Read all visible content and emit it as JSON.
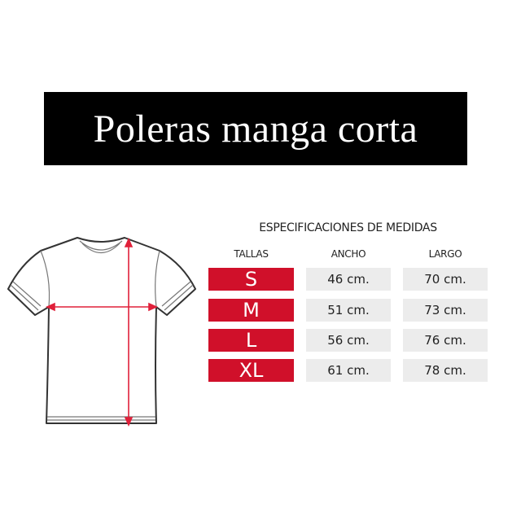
{
  "title": "Poleras manga corta",
  "table": {
    "title": "ESPECIFICACIONES DE MEDIDAS",
    "headers": [
      "TALLAS",
      "ANCHO",
      "LARGO"
    ],
    "rows": [
      {
        "size": "S",
        "ancho": "46 cm.",
        "largo": "70 cm."
      },
      {
        "size": "M",
        "ancho": "51 cm.",
        "largo": "73 cm."
      },
      {
        "size": "L",
        "ancho": "56 cm.",
        "largo": "76 cm."
      },
      {
        "size": "XL",
        "ancho": "61 cm.",
        "largo": "78 cm."
      }
    ]
  },
  "colors": {
    "size_cell": "#d0102a",
    "value_cell": "#ececec",
    "banner": "#000000",
    "arrows": "#e0203a"
  }
}
